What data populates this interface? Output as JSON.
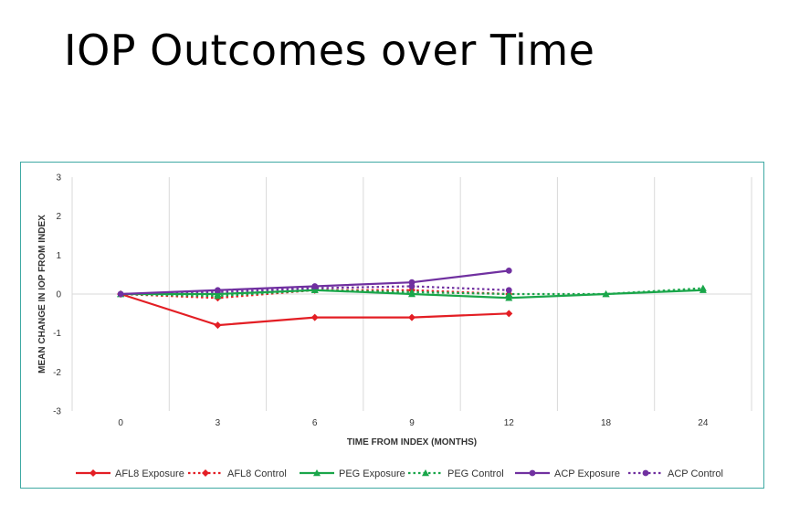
{
  "slide": {
    "title": "IOP Outcomes over Time"
  },
  "chart_data": {
    "type": "line",
    "title": "",
    "xlabel": "TIME FROM INDEX (MONTHS)",
    "ylabel": "MEAN CHANGE IN IOP FROM INDEX",
    "categories": [
      "0",
      "3",
      "6",
      "9",
      "12",
      "18",
      "24"
    ],
    "ylim": [
      -3,
      3
    ],
    "yticks": [
      -3,
      -2,
      -1,
      0,
      1,
      2,
      3
    ],
    "grid": {
      "vertical": true,
      "horizontal": false
    },
    "legend_position": "bottom",
    "series": [
      {
        "name": "AFL8 Exposure",
        "color": "#e31e24",
        "dash": "solid",
        "marker": "diamond",
        "values": [
          0,
          -0.8,
          -0.6,
          -0.6,
          -0.5,
          null,
          null
        ]
      },
      {
        "name": "AFL8 Control",
        "color": "#e31e24",
        "dash": "dotted",
        "marker": "diamond",
        "values": [
          0,
          -0.1,
          0.1,
          0.1,
          0.0,
          null,
          null
        ]
      },
      {
        "name": "PEG Exposure",
        "color": "#1aa64a",
        "dash": "solid",
        "marker": "triangle",
        "values": [
          0,
          0.0,
          0.1,
          0.0,
          -0.1,
          0.0,
          0.1
        ]
      },
      {
        "name": "PEG Control",
        "color": "#1aa64a",
        "dash": "dotted",
        "marker": "triangle",
        "values": [
          0,
          -0.05,
          0.1,
          0.05,
          0.0,
          0.0,
          0.15
        ]
      },
      {
        "name": "ACP Exposure",
        "color": "#7030a0",
        "dash": "solid",
        "marker": "circle",
        "values": [
          0,
          0.1,
          0.2,
          0.3,
          0.6,
          null,
          null
        ]
      },
      {
        "name": "ACP Control",
        "color": "#7030a0",
        "dash": "dotted",
        "marker": "circle",
        "values": [
          0,
          0.05,
          0.15,
          0.2,
          0.1,
          null,
          null
        ]
      }
    ]
  }
}
